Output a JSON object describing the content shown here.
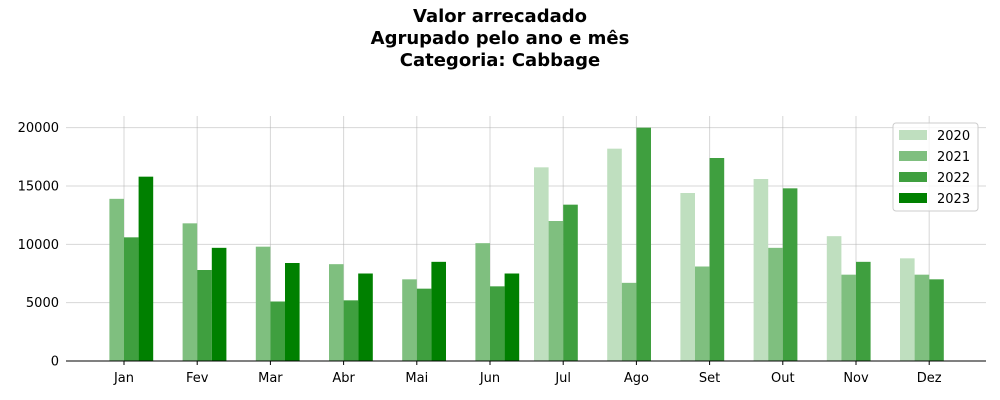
{
  "chart_data": {
    "type": "bar",
    "title_lines": [
      "Valor arrecadado",
      "Agrupado pelo ano e mês",
      "Categoria: Cabbage"
    ],
    "xlabel": "",
    "ylabel": "",
    "categories": [
      "Jan",
      "Fev",
      "Mar",
      "Abr",
      "Mai",
      "Jun",
      "Jul",
      "Ago",
      "Set",
      "Out",
      "Nov",
      "Dez"
    ],
    "ylim": [
      0,
      21000
    ],
    "yticks": [
      0,
      5000,
      10000,
      15000,
      20000
    ],
    "grid": true,
    "legend_position": "top-right",
    "series": [
      {
        "name": "2020",
        "color": "#bfdfbf",
        "values": [
          null,
          null,
          null,
          null,
          null,
          null,
          16600,
          18200,
          14400,
          15600,
          10700,
          8800
        ]
      },
      {
        "name": "2021",
        "color": "#7fbf7f",
        "values": [
          13900,
          11800,
          9800,
          8300,
          7000,
          10100,
          12000,
          6700,
          8100,
          9700,
          7400,
          7400
        ]
      },
      {
        "name": "2022",
        "color": "#3f9f3f",
        "values": [
          10600,
          7800,
          5100,
          5200,
          6200,
          6400,
          13400,
          20000,
          17400,
          14800,
          8500,
          7000
        ]
      },
      {
        "name": "2023",
        "color": "#008000",
        "values": [
          15800,
          9700,
          8400,
          7500,
          8500,
          7500,
          null,
          null,
          null,
          null,
          null,
          null
        ]
      }
    ]
  }
}
